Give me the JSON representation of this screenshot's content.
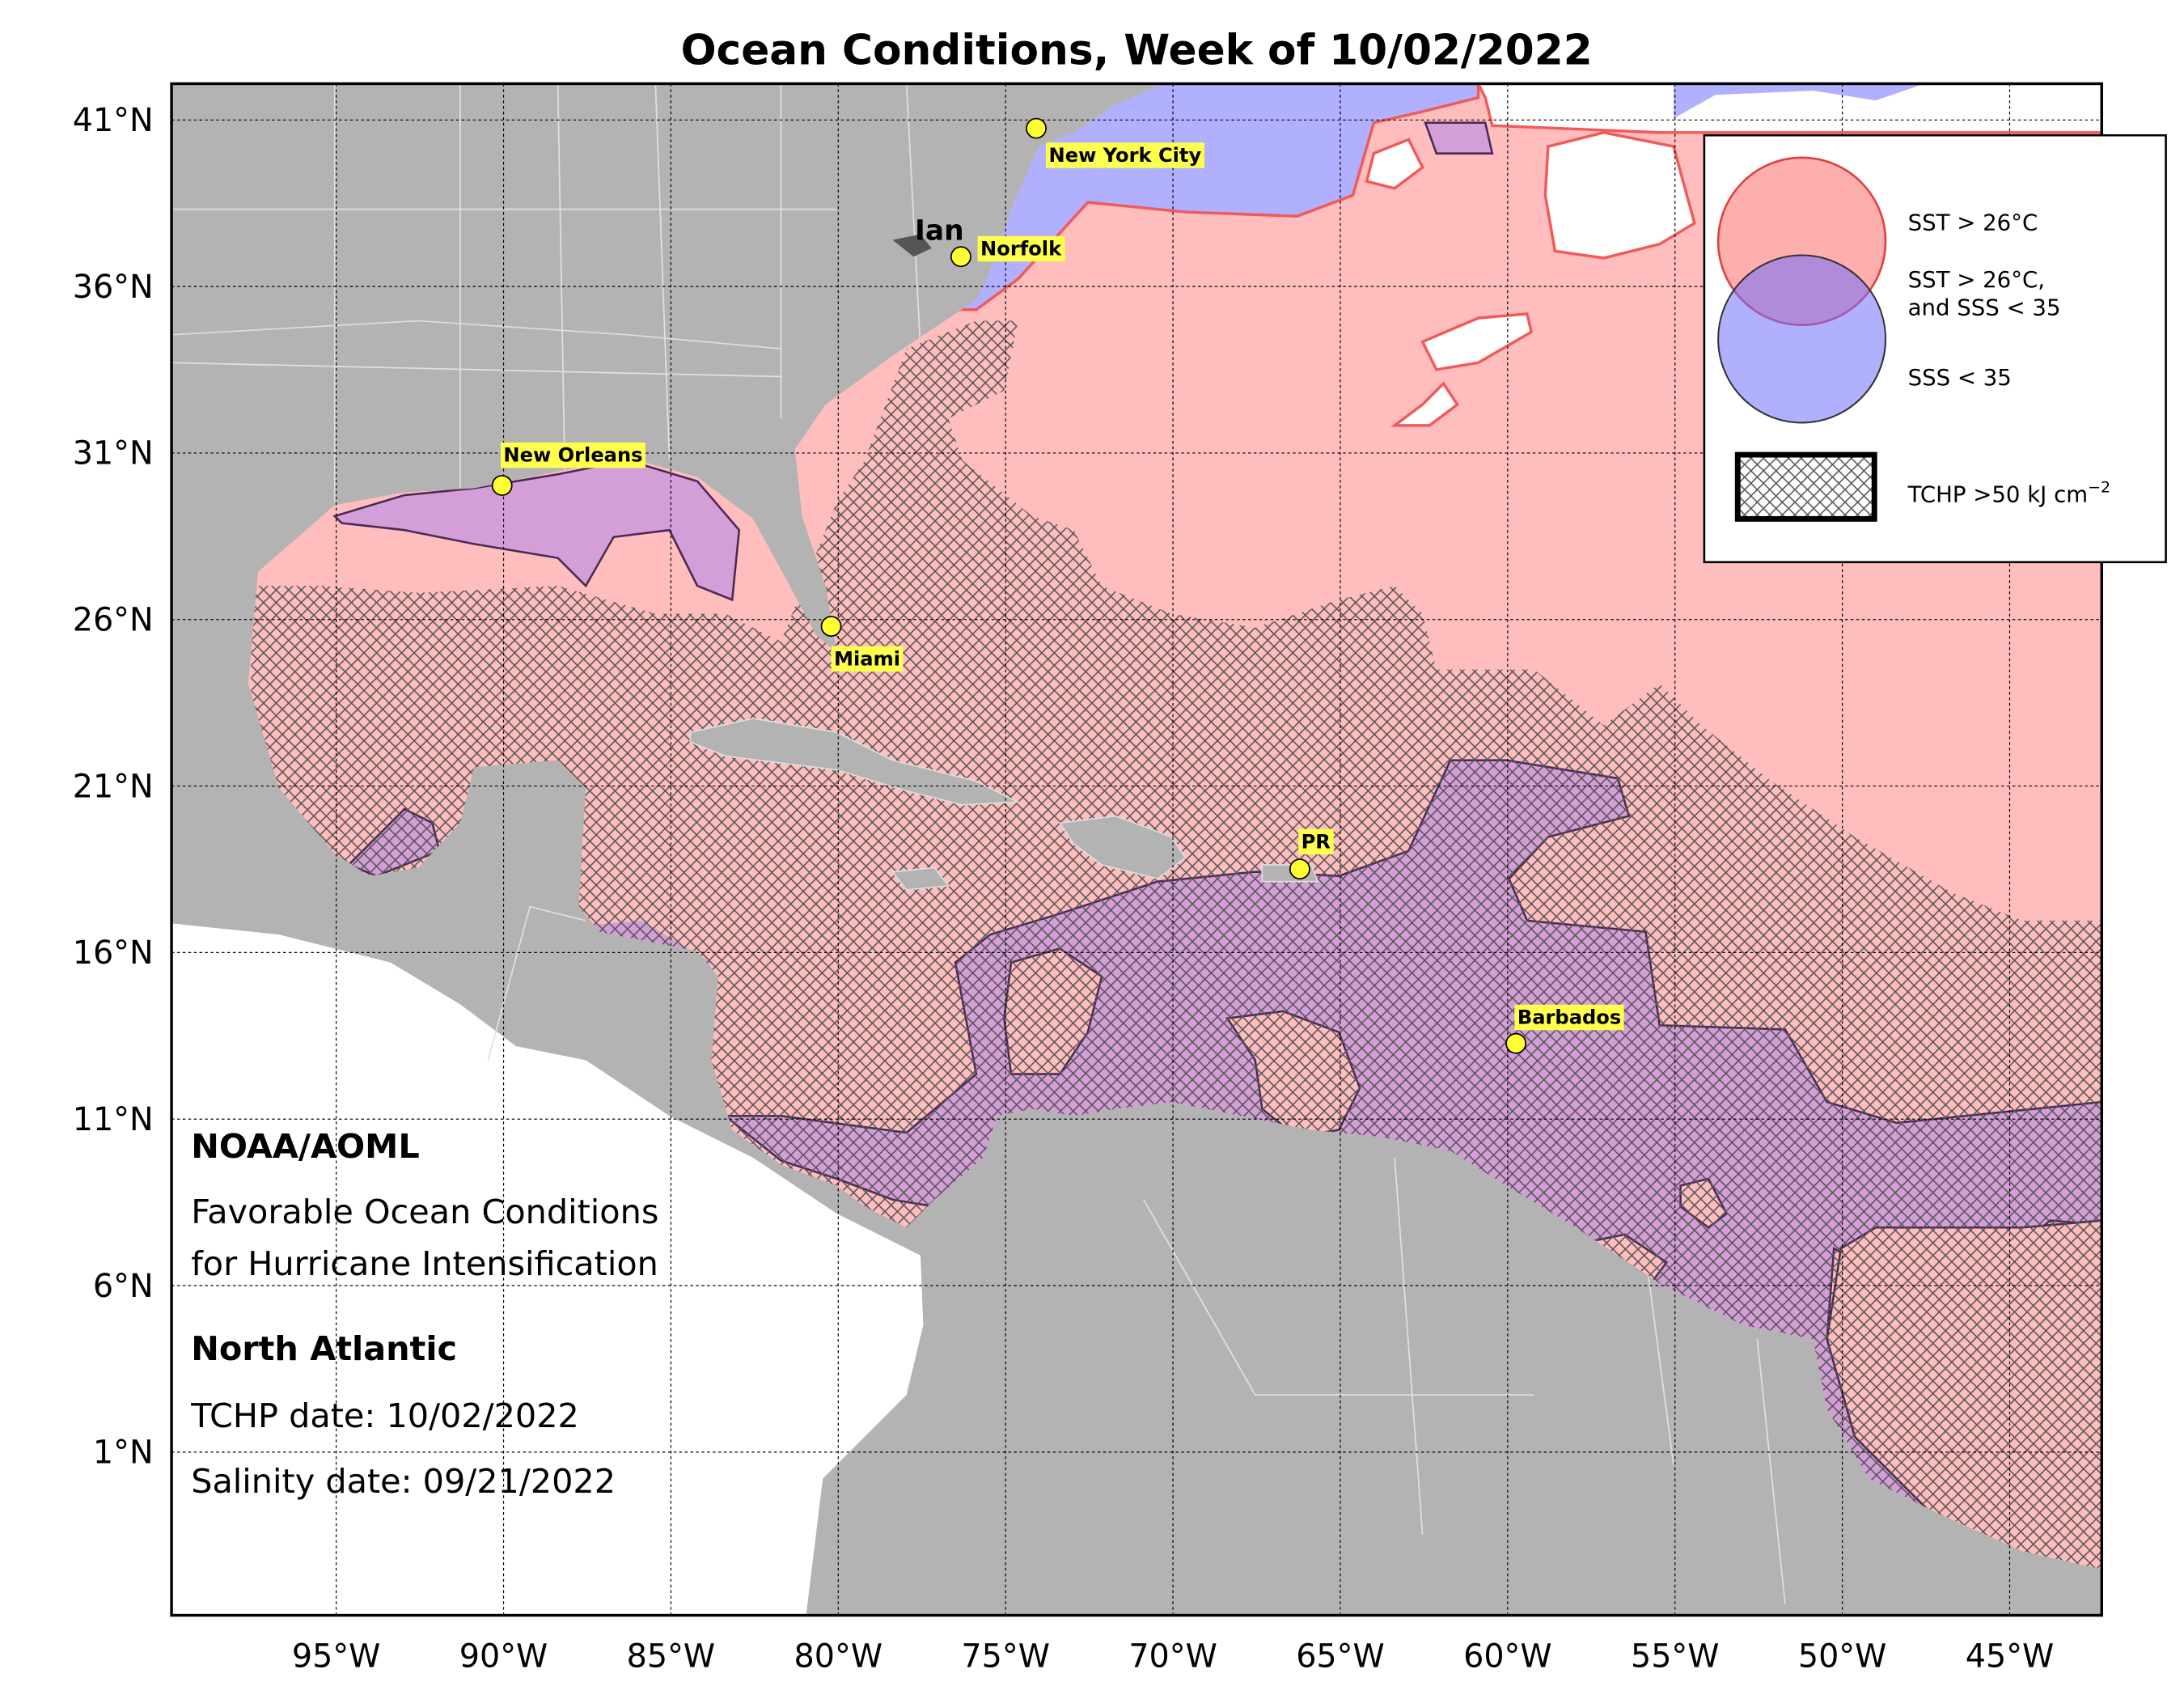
{
  "title": "Ocean Conditions, Week of 10/02/2022",
  "map": {
    "lon_lim": [
      -99.92,
      -42.25
    ],
    "lat_lim": [
      -3.9,
      42.09
    ],
    "grid": true,
    "lon_ticks": [
      {
        "value": -95,
        "label": "95°W"
      },
      {
        "value": -90,
        "label": "90°W"
      },
      {
        "value": -85,
        "label": "85°W"
      },
      {
        "value": -80,
        "label": "80°W"
      },
      {
        "value": -75,
        "label": "75°W"
      },
      {
        "value": -70,
        "label": "70°W"
      },
      {
        "value": -65,
        "label": "65°W"
      },
      {
        "value": -60,
        "label": "60°W"
      },
      {
        "value": -55,
        "label": "55°W"
      },
      {
        "value": -50,
        "label": "50°W"
      },
      {
        "value": -45,
        "label": "45°W"
      }
    ],
    "lat_ticks": [
      {
        "value": 41,
        "label": "41°N"
      },
      {
        "value": 36,
        "label": "36°N"
      },
      {
        "value": 31,
        "label": "31°N"
      },
      {
        "value": 26,
        "label": "26°N"
      },
      {
        "value": 21,
        "label": "21°N"
      },
      {
        "value": 16,
        "label": "16°N"
      },
      {
        "value": 11,
        "label": "11°N"
      },
      {
        "value": 6,
        "label": "6°N"
      },
      {
        "value": 1,
        "label": "1°N"
      }
    ]
  },
  "cities": [
    "New York City",
    "Norfolk",
    "New Orleans",
    "Miami",
    "PR",
    "Barbados"
  ],
  "storm": "Ian",
  "legend": {
    "sst": "SST > 26°C",
    "both": [
      "SST > 26°C,",
      "and SSS < 35"
    ],
    "sss": "SSS < 35",
    "tchp": {
      "text": "TCHP >50 kJ cm",
      "superscript": "−2"
    }
  },
  "info": {
    "org": "NOAA/AOML",
    "description": [
      "Favorable Ocean Conditions",
      "for Hurricane Intensification"
    ],
    "region": "North Atlantic",
    "tchp_date": "TCHP date: 10/02/2022",
    "salinity_date": "Salinity date: 09/21/2022"
  }
}
